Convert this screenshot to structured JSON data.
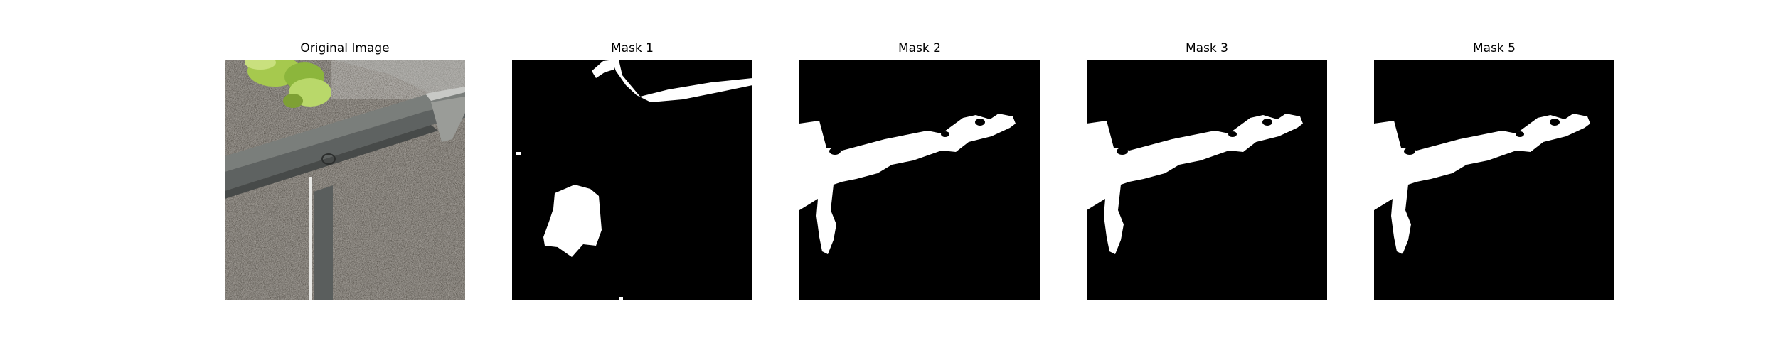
{
  "panels": [
    {
      "title": "Original Image"
    },
    {
      "title": "Mask 1"
    },
    {
      "title": "Mask 2"
    },
    {
      "title": "Mask 3"
    },
    {
      "title": "Mask 5"
    }
  ],
  "colors": {
    "mask_foreground": "#ffffff",
    "mask_background": "#000000",
    "ground": "#5f5a52",
    "rail": "#6f7370",
    "plant": "#9bc24a"
  }
}
